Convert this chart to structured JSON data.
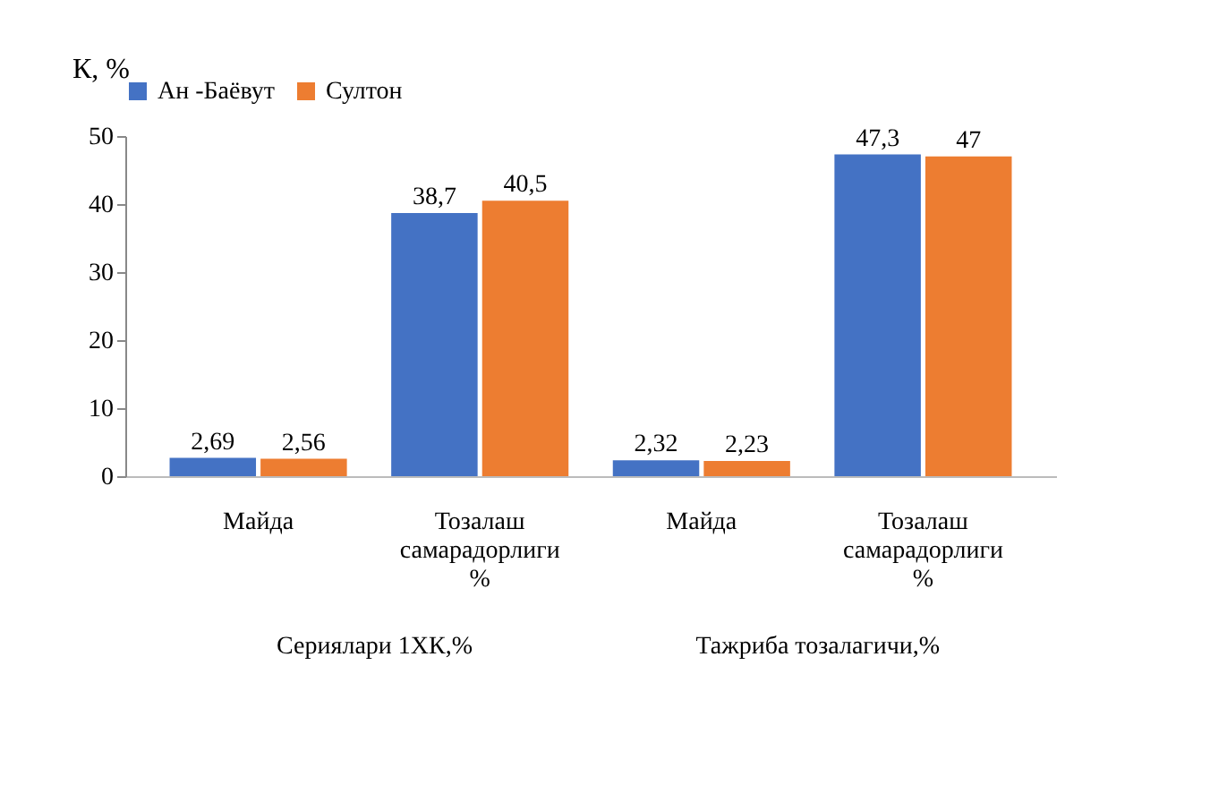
{
  "chart_data": {
    "type": "bar",
    "ylabel": "К, %",
    "categories": [
      "Майда",
      "Тозалаш самарадорлиги %",
      "Майда",
      "Тозалаш самарадорлиги %"
    ],
    "series": [
      {
        "name": "Ан -Баёвут",
        "color": "#4472c4",
        "values": [
          2.69,
          38.7,
          2.32,
          47.3
        ],
        "value_labels": [
          "2,69",
          "38,7",
          "2,32",
          "47,3"
        ]
      },
      {
        "name": "Султон",
        "color": "#ed7d31",
        "values": [
          2.56,
          40.5,
          2.23,
          47
        ],
        "value_labels": [
          "2,56",
          "40,5",
          "2,23",
          "47"
        ]
      }
    ],
    "ylim": [
      0,
      50
    ],
    "yticks": [
      0,
      10,
      20,
      30,
      40,
      50
    ],
    "grid": false,
    "legend": "top",
    "annotations": [
      "Сериялари 1ХК,%",
      "Тажриба тозалагичи,%"
    ]
  }
}
